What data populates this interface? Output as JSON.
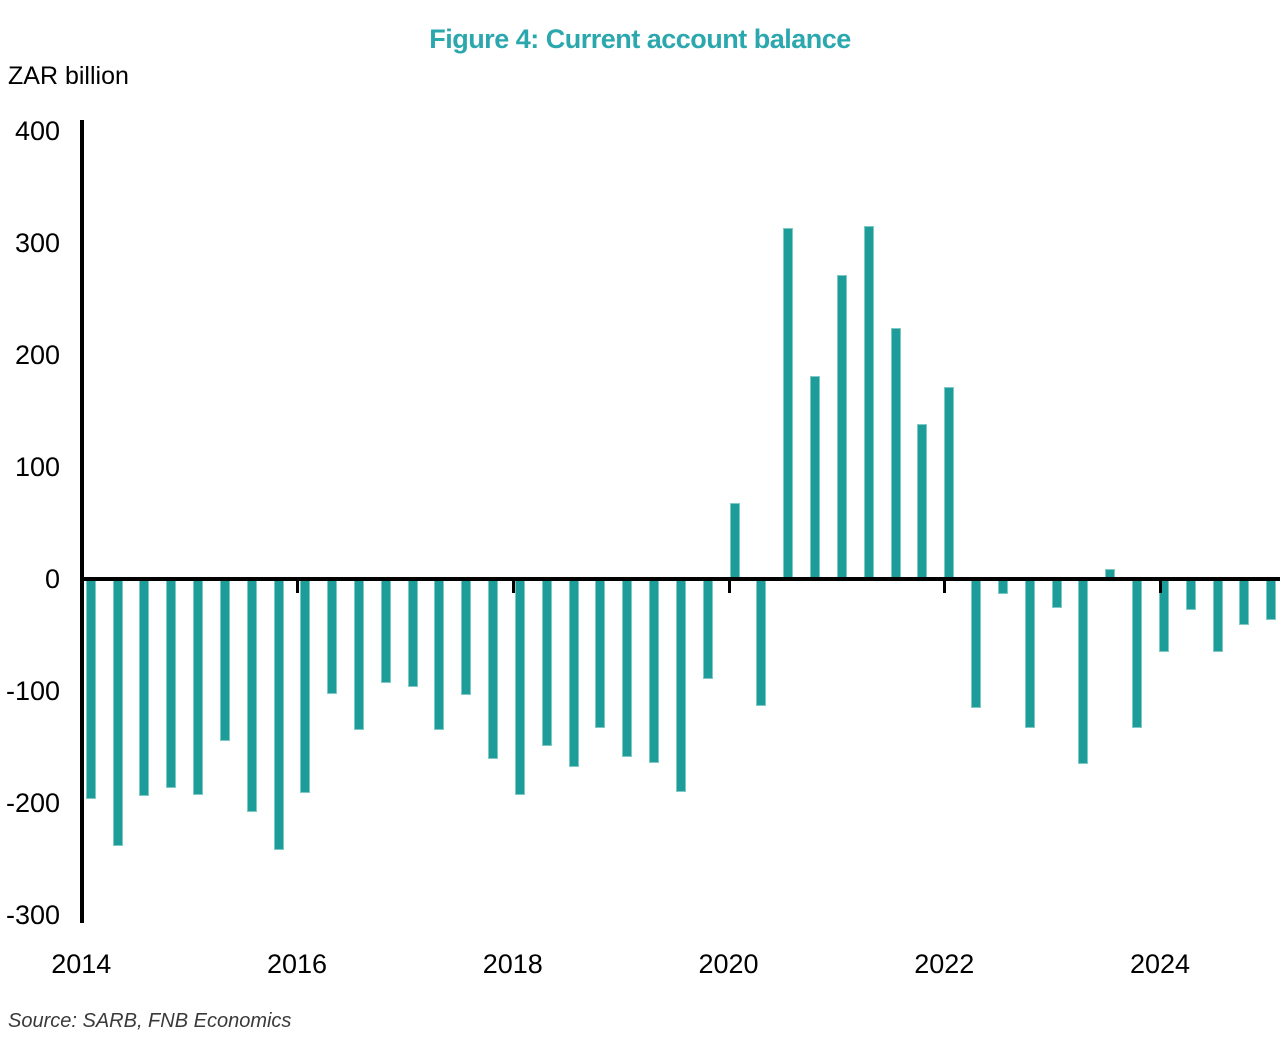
{
  "title": "Figure 4: Current account balance",
  "units_label": "ZAR billion",
  "source_note": "Source: SARB, FNB Economics",
  "colors": {
    "title": "#2BA7AE",
    "bar_fill": "#1C9D9A",
    "bar_edge": "#7FC8C4",
    "axis": "#000000",
    "text": "#000000",
    "source_text": "#3a3a3a",
    "background": "#ffffff"
  },
  "chart_data": {
    "type": "bar",
    "title": "Figure 4: Current account balance",
    "xlabel": "",
    "ylabel": "ZAR billion",
    "ylim": [
      -306,
      410
    ],
    "grid": false,
    "legend": null,
    "y_ticks": [
      400,
      300,
      200,
      100,
      0,
      -100,
      -200,
      -300
    ],
    "x_tick_labels": [
      "2014",
      "2016",
      "2018",
      "2020",
      "2022",
      "2024"
    ],
    "categories": [
      "2014 Q1",
      "2014 Q2",
      "2014 Q3",
      "2014 Q4",
      "2015 Q1",
      "2015 Q2",
      "2015 Q3",
      "2015 Q4",
      "2016 Q1",
      "2016 Q2",
      "2016 Q3",
      "2016 Q4",
      "2017 Q1",
      "2017 Q2",
      "2017 Q3",
      "2017 Q4",
      "2018 Q1",
      "2018 Q2",
      "2018 Q3",
      "2018 Q4",
      "2019 Q1",
      "2019 Q2",
      "2019 Q3",
      "2019 Q4",
      "2020 Q1",
      "2020 Q2",
      "2020 Q3",
      "2020 Q4",
      "2021 Q1",
      "2021 Q2",
      "2021 Q3",
      "2021 Q4",
      "2022 Q1",
      "2022 Q2",
      "2022 Q3",
      "2022 Q4",
      "2023 Q1",
      "2023 Q2",
      "2023 Q3",
      "2023 Q4",
      "2024 Q1",
      "2024 Q2",
      "2024 Q3",
      "2024 Q4",
      "2025 Q1"
    ],
    "values": [
      -196,
      -238,
      -194,
      -187,
      -193,
      -145,
      -208,
      -242,
      -191,
      -103,
      -135,
      -93,
      -96,
      -135,
      -104,
      -161,
      -193,
      -149,
      -168,
      -133,
      -159,
      -164,
      -190,
      -89,
      68,
      -113,
      313,
      181,
      271,
      315,
      224,
      138,
      171,
      -115,
      -13,
      -133,
      -26,
      -165,
      9,
      -133,
      -65,
      -28,
      -65,
      -41,
      -37
    ]
  }
}
